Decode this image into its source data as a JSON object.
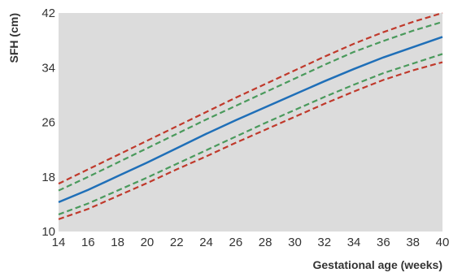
{
  "chart_data": {
    "type": "line",
    "title": "",
    "xlabel": "Gestational age (weeks)",
    "ylabel": "SFH (cm)",
    "xlim": [
      14,
      40
    ],
    "ylim": [
      10,
      42
    ],
    "x_ticks": [
      14,
      16,
      18,
      20,
      22,
      24,
      26,
      28,
      30,
      32,
      34,
      36,
      38,
      40
    ],
    "y_ticks": [
      10,
      18,
      26,
      34,
      42
    ],
    "grid": false,
    "background": "#dcdcdc",
    "x": [
      14,
      16,
      18,
      20,
      22,
      24,
      26,
      28,
      30,
      32,
      34,
      36,
      38,
      40
    ],
    "series": [
      {
        "color": "#c0392b",
        "dash": "dashed",
        "values": [
          17.0,
          19.1,
          21.2,
          23.3,
          25.4,
          27.5,
          29.6,
          31.6,
          33.6,
          35.6,
          37.5,
          39.2,
          40.7,
          42.0
        ]
      },
      {
        "color": "#4a9a5c",
        "dash": "dashed",
        "values": [
          16.0,
          18.0,
          20.1,
          22.2,
          24.3,
          26.4,
          28.4,
          30.4,
          32.4,
          34.4,
          36.3,
          37.9,
          39.4,
          40.7
        ]
      },
      {
        "color": "#1f6fb8",
        "dash": "solid",
        "values": [
          14.3,
          16.1,
          18.1,
          20.1,
          22.2,
          24.3,
          26.3,
          28.2,
          30.1,
          32.0,
          33.8,
          35.5,
          37.0,
          38.5
        ]
      },
      {
        "color": "#4a9a5c",
        "dash": "dashed",
        "values": [
          12.5,
          14.1,
          16.0,
          17.9,
          19.9,
          21.9,
          23.9,
          25.9,
          27.8,
          29.7,
          31.5,
          33.2,
          34.6,
          36.0
        ]
      },
      {
        "color": "#c0392b",
        "dash": "dashed",
        "values": [
          11.8,
          13.3,
          15.2,
          17.1,
          19.1,
          21.0,
          23.0,
          24.9,
          26.8,
          28.7,
          30.5,
          32.2,
          33.6,
          34.8
        ]
      }
    ]
  }
}
